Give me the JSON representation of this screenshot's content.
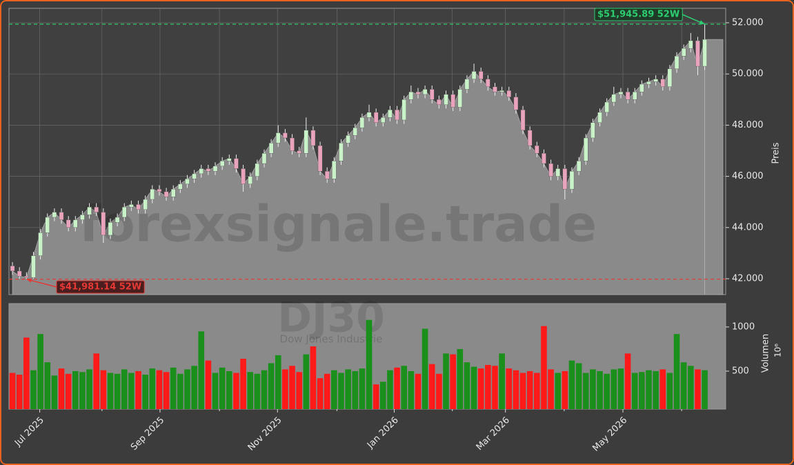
{
  "chart_data": {
    "type": "candlestick",
    "watermark": "forexsignale.trade",
    "symbol": "DJ30",
    "symbol_name": "Dow Jones Industrie",
    "y_label": "Preis",
    "y2_label": "Volumen",
    "y2_unit": "10⁶",
    "up_color": "#c9f2c9",
    "down_color": "#e9a3bd",
    "volume_up_color": "#1b8f1b",
    "volume_down_color": "#ff1a1a",
    "area_color": "#8a8a8a",
    "grid": true,
    "xlim": [
      -0.5,
      102
    ],
    "xticks": [
      {
        "value": 3.9,
        "label": "Jul 2025"
      },
      {
        "value": 21.1,
        "label": "Sep 2025"
      },
      {
        "value": 37.9,
        "label": "Nov 2025"
      },
      {
        "value": 54.6,
        "label": "Jan 2026"
      },
      {
        "value": 70.5,
        "label": "Mar 2026"
      },
      {
        "value": 87.3,
        "label": "May 2026"
      }
    ],
    "xticks_minor": [
      12.8,
      29.6,
      46.4,
      62.9,
      78.9,
      95.7
    ],
    "ylim": [
      41380,
      52566
    ],
    "yticks": [
      {
        "value": 42000,
        "label": "42.000"
      },
      {
        "value": 44000,
        "label": "44.000"
      },
      {
        "value": 46000,
        "label": "46.000"
      },
      {
        "value": 48000,
        "label": "48.000"
      },
      {
        "value": 50000,
        "label": "50.000"
      },
      {
        "value": 52000,
        "label": "52.000"
      }
    ],
    "y2lim": [
      70,
      1265
    ],
    "y2ticks": [
      500,
      1000
    ],
    "annotations": [
      {
        "label": "$51,945.89 52W",
        "value": 51945.89,
        "color": "#2ecc71"
      },
      {
        "label": "$41,981.14 52W",
        "value": 41981.14,
        "color": "#e53935"
      }
    ],
    "open": [
      42500,
      42300,
      42100,
      42050,
      42900,
      43800,
      44400,
      44600,
      44300,
      44000,
      44300,
      44500,
      44800,
      44600,
      43700,
      44200,
      44400,
      44800,
      44900,
      44700,
      45100,
      45500,
      45400,
      45200,
      45500,
      45700,
      45900,
      46100,
      46300,
      46200,
      46400,
      46600,
      46700,
      46300,
      45700,
      46000,
      46500,
      46900,
      47300,
      47700,
      47500,
      47000,
      46900,
      47800,
      47200,
      46200,
      45900,
      46600,
      47300,
      47600,
      47900,
      48300,
      48500,
      48100,
      48300,
      48600,
      48200,
      49000,
      49300,
      49200,
      49400,
      49000,
      48800,
      49200,
      48700,
      49400,
      49800,
      50100,
      49800,
      49500,
      49300,
      49350,
      49100,
      48600,
      47800,
      47200,
      46900,
      46500,
      46000,
      46300,
      45500,
      46200,
      46600,
      47500,
      48100,
      48500,
      48900,
      49200,
      49300,
      49000,
      49300,
      49600,
      49700,
      49800,
      49500,
      50200,
      50700,
      51000,
      51300,
      50300
    ],
    "high": [
      42650,
      42450,
      42250,
      43050,
      43950,
      44550,
      44750,
      44750,
      44450,
      44450,
      44650,
      44950,
      44950,
      44750,
      44350,
      44550,
      44950,
      45050,
      45050,
      45250,
      45650,
      45650,
      45550,
      45650,
      45850,
      46050,
      46250,
      46450,
      46450,
      46550,
      46750,
      46850,
      46850,
      46450,
      46150,
      46650,
      47050,
      47450,
      48000,
      47850,
      47650,
      47150,
      48300,
      47950,
      47350,
      46350,
      46750,
      47450,
      47750,
      48050,
      48450,
      48800,
      48650,
      48450,
      48750,
      48750,
      49150,
      49550,
      49450,
      49550,
      49550,
      49150,
      49350,
      49350,
      49550,
      49950,
      50400,
      50250,
      49950,
      49650,
      49500,
      49500,
      49250,
      48750,
      47950,
      47350,
      47050,
      46650,
      46450,
      46450,
      46350,
      46750,
      47650,
      48250,
      48650,
      49050,
      49500,
      49450,
      49450,
      49450,
      49750,
      49850,
      49950,
      49950,
      50350,
      50850,
      51150,
      51600,
      51450,
      51945.89
    ],
    "low": [
      42150,
      42000,
      41981.14,
      42000,
      42750,
      43650,
      44250,
      44150,
      43850,
      43850,
      44150,
      44350,
      44450,
      43400,
      43550,
      44050,
      44250,
      44650,
      44550,
      44550,
      44950,
      45250,
      45050,
      45050,
      45350,
      45550,
      45750,
      45950,
      46050,
      46050,
      46250,
      46450,
      46150,
      45400,
      45550,
      45850,
      46350,
      46750,
      47150,
      47350,
      46850,
      46750,
      46750,
      47050,
      46050,
      45750,
      45750,
      46450,
      47150,
      47450,
      47750,
      48150,
      47950,
      47950,
      48150,
      48050,
      48050,
      48850,
      49050,
      49050,
      48850,
      48650,
      48650,
      48550,
      48550,
      49250,
      49650,
      49650,
      49350,
      49150,
      49150,
      48950,
      48450,
      47650,
      47050,
      46750,
      46350,
      45850,
      45850,
      45100,
      45350,
      46050,
      46450,
      47350,
      47950,
      48350,
      48750,
      49050,
      48850,
      48850,
      49150,
      49450,
      49550,
      49350,
      49350,
      50050,
      50550,
      50850,
      49950,
      50150
    ],
    "close": [
      42300,
      42100,
      42050,
      42900,
      43800,
      44400,
      44600,
      44300,
      44000,
      44300,
      44500,
      44800,
      44600,
      43700,
      44200,
      44400,
      44800,
      44900,
      44700,
      45100,
      45500,
      45400,
      45200,
      45500,
      45700,
      45900,
      46100,
      46300,
      46200,
      46400,
      46600,
      46700,
      46300,
      45700,
      46000,
      46500,
      46900,
      47300,
      47700,
      47500,
      47000,
      46900,
      47800,
      47200,
      46200,
      45900,
      46600,
      47300,
      47600,
      47900,
      48300,
      48500,
      48100,
      48300,
      48600,
      48200,
      49000,
      49300,
      49200,
      49400,
      49000,
      48800,
      49200,
      48700,
      49400,
      49800,
      50100,
      49800,
      49500,
      49300,
      49350,
      49100,
      48600,
      47800,
      47200,
      46900,
      46500,
      46000,
      46300,
      45500,
      46200,
      46600,
      47500,
      48100,
      48500,
      48900,
      49200,
      49300,
      49000,
      49300,
      49600,
      49700,
      49800,
      49500,
      50200,
      50700,
      51000,
      51300,
      50300,
      51350
    ],
    "volume": [
      480,
      460,
      880,
      510,
      920,
      600,
      450,
      530,
      470,
      500,
      490,
      520,
      700,
      510,
      480,
      470,
      520,
      480,
      500,
      460,
      530,
      510,
      490,
      540,
      470,
      520,
      560,
      950,
      620,
      480,
      540,
      500,
      480,
      640,
      490,
      470,
      510,
      590,
      680,
      520,
      560,
      490,
      690,
      780,
      420,
      470,
      510,
      480,
      520,
      500,
      530,
      1080,
      350,
      380,
      510,
      540,
      560,
      500,
      470,
      980,
      580,
      470,
      700,
      690,
      750,
      600,
      550,
      530,
      570,
      560,
      700,
      530,
      510,
      480,
      500,
      480,
      1010,
      520,
      480,
      500,
      620,
      590,
      480,
      520,
      500,
      470,
      520,
      530,
      700,
      480,
      490,
      510,
      500,
      520,
      480,
      920,
      600,
      560,
      520,
      510
    ]
  }
}
